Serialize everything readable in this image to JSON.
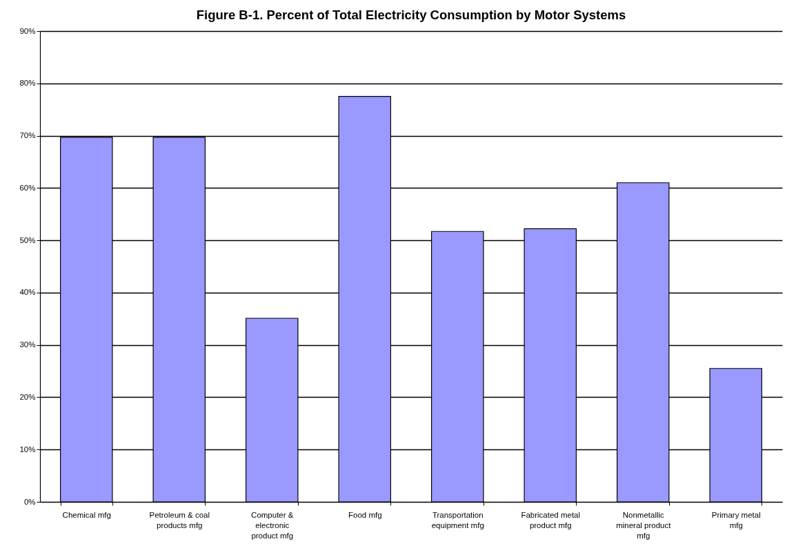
{
  "chart_data": {
    "type": "bar",
    "title": "Figure B-1. Percent of Total Electricity Consumption by Motor Systems",
    "categories": [
      "Chemical mfg",
      "Petroleum & coal products mfg",
      "Computer & electronic product mfg",
      "Food mfg",
      "Transportation equipment mfg",
      "Fabricated metal product mfg",
      "Nonmetallic mineral product mfg",
      "Primary metal mfg"
    ],
    "values": [
      69.7,
      69.7,
      35.1,
      77.5,
      51.7,
      52.2,
      61.0,
      25.5
    ],
    "color": "#9999ff",
    "ylim": [
      0,
      90
    ],
    "yticks": [
      {
        "value": 0,
        "label": "0%"
      },
      {
        "value": 10,
        "label": "10%"
      },
      {
        "value": 20,
        "label": "20%"
      },
      {
        "value": 30,
        "label": "30%"
      },
      {
        "value": 40,
        "label": "40%"
      },
      {
        "value": 50,
        "label": "50%"
      },
      {
        "value": 60,
        "label": "60%"
      },
      {
        "value": 70,
        "label": "70%"
      },
      {
        "value": 80,
        "label": "80%"
      },
      {
        "value": 90,
        "label": "90%"
      }
    ],
    "grid": "y"
  }
}
